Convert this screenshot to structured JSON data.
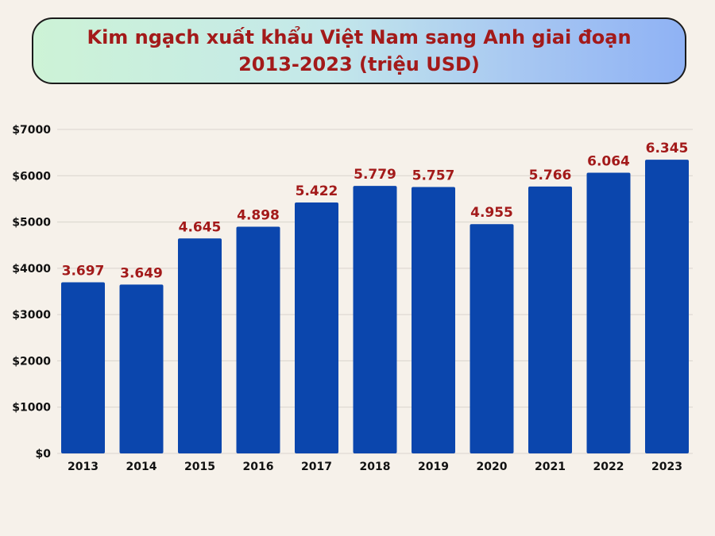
{
  "chart_data": {
    "type": "bar",
    "title_lines": [
      "Kim ngạch xuất khẩu Việt Nam sang Anh giai đoạn",
      "2013-2023 (triệu USD)"
    ],
    "categories": [
      "2013",
      "2014",
      "2015",
      "2016",
      "2017",
      "2018",
      "2019",
      "2020",
      "2021",
      "2022",
      "2023"
    ],
    "values": [
      3697,
      3649,
      4645,
      4898,
      5422,
      5779,
      5757,
      4955,
      5766,
      6064,
      6345
    ],
    "value_labels": [
      "3.697",
      "3.649",
      "4.645",
      "4.898",
      "5.422",
      "5.779",
      "5.757",
      "4.955",
      "5.766",
      "6.064",
      "6.345"
    ],
    "y_ticks": [
      0,
      1000,
      2000,
      3000,
      4000,
      5000,
      6000,
      7000
    ],
    "y_tick_labels": [
      "$0",
      "$1000",
      "$2000",
      "$3000",
      "$4000",
      "$5000",
      "$6000",
      "$7000"
    ],
    "ylim": [
      0,
      7000
    ],
    "grid": true,
    "xlabel": "",
    "ylabel": "",
    "bar_color": "#0b46ad",
    "label_color": "#a31a1a",
    "grid_color": "#d9d4cd"
  }
}
